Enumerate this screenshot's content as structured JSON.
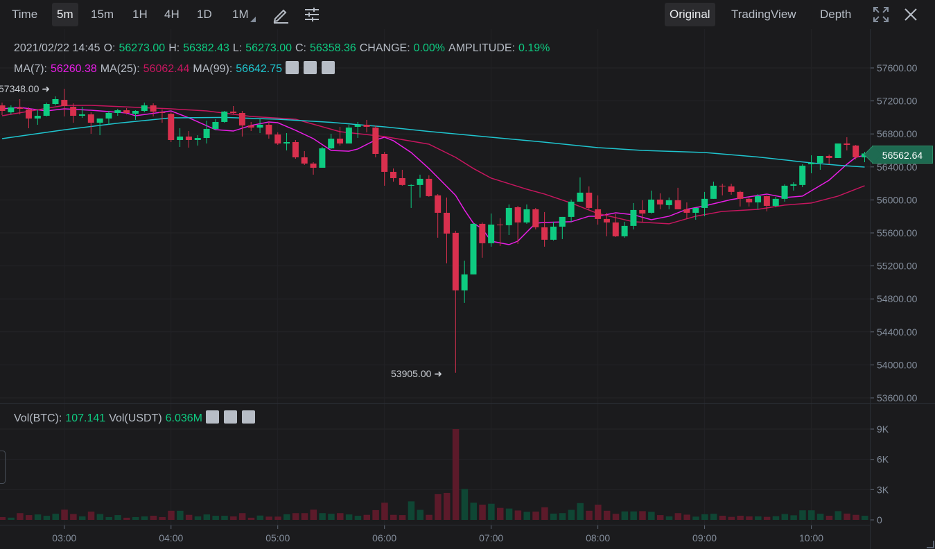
{
  "toolbar": {
    "intervals": [
      "Time",
      "5m",
      "15m",
      "1H",
      "4H",
      "1D",
      "1M"
    ],
    "active_interval": "5m",
    "views": [
      "Original",
      "TradingView",
      "Depth"
    ],
    "active_view": "Original",
    "icons": [
      "pencil-icon",
      "settings-sliders-icon",
      "fullscreen-icon",
      "close-icon"
    ]
  },
  "legend": {
    "datetime": "2021/02/22 14:45",
    "o_label": "O:",
    "o": "56273.00",
    "h_label": "H:",
    "h": "56382.43",
    "l_label": "L:",
    "l": "56273.00",
    "c_label": "C:",
    "c": "56358.36",
    "change_label": "CHANGE:",
    "change": "0.00%",
    "amp_label": "AMPLITUDE:",
    "amp": "0.19%",
    "ma7_label": "MA(7):",
    "ma7": "56260.38",
    "ma25_label": "MA(25):",
    "ma25": "56062.44",
    "ma99_label": "MA(99):",
    "ma99": "56642.75",
    "vol_btc_label": "Vol(BTC):",
    "vol_btc": "107.141",
    "vol_usdt_label": "Vol(USDT)",
    "vol_usdt": "6.036M"
  },
  "colors": {
    "up": "#0ecb81",
    "down": "#d9304e",
    "vol_up": "#0f4634",
    "vol_down": "#5c1a2a",
    "ma7": "#e81ee6",
    "ma25": "#c7165f",
    "ma99": "#1fc5cf"
  },
  "chart_data": {
    "type": "candlestick",
    "title": "",
    "start_time": "02:25",
    "interval_min": 5,
    "candle_fields": [
      "open",
      "high",
      "low",
      "close",
      "volume"
    ],
    "candles": [
      [
        57146,
        57180,
        57029,
        57079,
        280
      ],
      [
        57062,
        57146,
        57037,
        57121,
        220
      ],
      [
        57121,
        57222,
        57037,
        57104,
        670
      ],
      [
        57096,
        57121,
        56869,
        56987,
        475
      ],
      [
        56987,
        57096,
        56911,
        57020,
        540
      ],
      [
        57020,
        57180,
        57012,
        57163,
        410
      ],
      [
        57163,
        57255,
        57146,
        57222,
        605
      ],
      [
        57213,
        57348,
        57012,
        57138,
        1015
      ],
      [
        57129,
        57171,
        56936,
        57020,
        580
      ],
      [
        57020,
        57129,
        56995,
        57037,
        345
      ],
      [
        57037,
        57062,
        56802,
        56936,
        820
      ],
      [
        56936,
        56987,
        56785,
        56987,
        580
      ],
      [
        56987,
        57079,
        56911,
        57054,
        280
      ],
      [
        57054,
        57104,
        57020,
        57087,
        475
      ],
      [
        57087,
        57113,
        57037,
        57054,
        215
      ],
      [
        57045,
        57087,
        56970,
        57079,
        280
      ],
      [
        57079,
        57180,
        57062,
        57146,
        345
      ],
      [
        57146,
        57171,
        57012,
        57071,
        410
      ],
      [
        57062,
        57096,
        56936,
        57054,
        280
      ],
      [
        57045,
        57062,
        56701,
        56726,
        905
      ],
      [
        56726,
        56869,
        56642,
        56768,
        905
      ],
      [
        56768,
        56835,
        56634,
        56726,
        500
      ],
      [
        56726,
        56785,
        56659,
        56751,
        345
      ],
      [
        56751,
        56961,
        56684,
        56861,
        540
      ],
      [
        56861,
        56978,
        56844,
        56945,
        410
      ],
      [
        56945,
        57079,
        56936,
        57071,
        410
      ],
      [
        57071,
        57138,
        57037,
        57054,
        345
      ],
      [
        57054,
        57079,
        56768,
        56903,
        670
      ],
      [
        56903,
        56945,
        56835,
        56877,
        215
      ],
      [
        56877,
        56987,
        56810,
        56911,
        430
      ],
      [
        56911,
        56945,
        56743,
        56793,
        325
      ],
      [
        56793,
        56819,
        56667,
        56684,
        325
      ],
      [
        56684,
        56810,
        56600,
        56701,
        560
      ],
      [
        56701,
        56726,
        56499,
        56516,
        670
      ],
      [
        56516,
        56592,
        56424,
        56441,
        670
      ],
      [
        56441,
        56457,
        56306,
        56390,
        1015
      ],
      [
        56390,
        56642,
        56390,
        56625,
        670
      ],
      [
        56625,
        56802,
        56617,
        56743,
        605
      ],
      [
        56743,
        56886,
        56659,
        56684,
        670
      ],
      [
        56684,
        56911,
        56684,
        56877,
        540
      ],
      [
        56886,
        56945,
        56751,
        56911,
        410
      ],
      [
        56911,
        56970,
        56819,
        56886,
        500
      ],
      [
        56877,
        56903,
        56516,
        56558,
        970
      ],
      [
        56558,
        56583,
        56172,
        56340,
        1705
      ],
      [
        56340,
        56381,
        56222,
        56264,
        500
      ],
      [
        56264,
        56365,
        56172,
        56181,
        475
      ],
      [
        56172,
        56189,
        55903,
        56181,
        1835
      ],
      [
        56181,
        56306,
        56029,
        56256,
        995
      ],
      [
        56256,
        56298,
        56038,
        56046,
        500
      ],
      [
        56055,
        56071,
        55542,
        55844,
        2550
      ],
      [
        55844,
        56029,
        55231,
        55592,
        2680
      ],
      [
        55601,
        55626,
        53905,
        54903,
        9000
      ],
      [
        54903,
        55264,
        54752,
        55097,
        3065
      ],
      [
        55097,
        55718,
        55097,
        55710,
        1705
      ],
      [
        55710,
        55727,
        55299,
        55475,
        1510
      ],
      [
        55475,
        55835,
        55433,
        55701,
        1600
      ],
      [
        55701,
        55777,
        55441,
        55693,
        1190
      ],
      [
        55693,
        55945,
        55575,
        55903,
        1125
      ],
      [
        55911,
        55928,
        55466,
        55727,
        930
      ],
      [
        55727,
        55945,
        55710,
        55886,
        800
      ],
      [
        55886,
        55903,
        55643,
        55668,
        820
      ],
      [
        55668,
        55853,
        55433,
        55517,
        1250
      ],
      [
        55517,
        55735,
        55508,
        55676,
        625
      ],
      [
        55676,
        55794,
        55525,
        55794,
        670
      ],
      [
        55794,
        56004,
        55735,
        55979,
        995
      ],
      [
        55979,
        56273,
        55979,
        56088,
        1665
      ],
      [
        56088,
        56164,
        55886,
        55903,
        905
      ],
      [
        55886,
        56055,
        55701,
        55769,
        1510
      ],
      [
        55769,
        55844,
        55559,
        55727,
        905
      ],
      [
        55727,
        55827,
        55550,
        55559,
        605
      ],
      [
        55559,
        55735,
        55542,
        55685,
        840
      ],
      [
        55685,
        55962,
        55643,
        55878,
        840
      ],
      [
        55878,
        55996,
        55727,
        55835,
        865
      ],
      [
        55844,
        56113,
        55835,
        56004,
        800
      ],
      [
        56004,
        56080,
        55886,
        55945,
        475
      ],
      [
        55937,
        56029,
        55886,
        55996,
        345
      ],
      [
        55996,
        56147,
        55886,
        55886,
        670
      ],
      [
        55886,
        55970,
        55769,
        55844,
        520
      ],
      [
        55844,
        55903,
        55760,
        55903,
        325
      ],
      [
        55903,
        56097,
        55802,
        56013,
        560
      ],
      [
        56013,
        56222,
        56013,
        56172,
        605
      ],
      [
        56172,
        56197,
        56055,
        56164,
        410
      ],
      [
        56164,
        56197,
        56063,
        56097,
        300
      ],
      [
        56097,
        56113,
        55920,
        56013,
        410
      ],
      [
        56013,
        56029,
        55920,
        55970,
        345
      ],
      [
        55970,
        56071,
        55886,
        56046,
        345
      ],
      [
        56046,
        56055,
        55861,
        55928,
        300
      ],
      [
        55928,
        56038,
        55911,
        56013,
        365
      ],
      [
        56013,
        56189,
        55979,
        56172,
        580
      ],
      [
        56172,
        56214,
        56113,
        56189,
        455
      ],
      [
        56181,
        56432,
        56155,
        56415,
        950
      ],
      [
        56432,
        56541,
        56323,
        56449,
        950
      ],
      [
        56449,
        56533,
        56365,
        56533,
        605
      ],
      [
        56533,
        56550,
        56432,
        56508,
        410
      ],
      [
        56508,
        56684,
        56508,
        56684,
        865
      ],
      [
        56684,
        56760,
        56600,
        56667,
        625
      ],
      [
        56659,
        56667,
        56491,
        56516,
        500
      ],
      [
        56516,
        56583,
        56457,
        56562.64,
        410
      ]
    ],
    "ma_series": {
      "MA(7)": [
        [
          "02:25",
          57104
        ],
        [
          "02:35",
          57121
        ],
        [
          "02:50",
          57079
        ],
        [
          "03:00",
          57104
        ],
        [
          "03:15",
          57087
        ],
        [
          "03:35",
          57054
        ],
        [
          "03:40",
          57020
        ],
        [
          "04:00",
          57079
        ],
        [
          "04:10",
          56995
        ],
        [
          "04:25",
          56852
        ],
        [
          "04:35",
          56835
        ],
        [
          "04:45",
          56903
        ],
        [
          "04:55",
          56945
        ],
        [
          "05:00",
          56936
        ],
        [
          "05:10",
          56844
        ],
        [
          "05:20",
          56743
        ],
        [
          "05:30",
          56600
        ],
        [
          "05:40",
          56591
        ],
        [
          "05:45",
          56617
        ],
        [
          "05:55",
          56726
        ],
        [
          "06:00",
          56760
        ],
        [
          "06:05",
          56718
        ],
        [
          "06:15",
          56575
        ],
        [
          "06:25",
          56381
        ],
        [
          "06:40",
          56055
        ],
        [
          "06:45",
          55878
        ],
        [
          "06:50",
          55718
        ],
        [
          "06:55",
          55651
        ],
        [
          "07:00",
          55500
        ],
        [
          "07:10",
          55458
        ],
        [
          "07:15",
          55500
        ],
        [
          "07:25",
          55718
        ],
        [
          "07:30",
          55727
        ],
        [
          "07:45",
          55735
        ],
        [
          "07:55",
          55802
        ],
        [
          "08:00",
          55802
        ],
        [
          "08:10",
          55844
        ],
        [
          "08:20",
          55820
        ],
        [
          "08:30",
          55760
        ],
        [
          "08:40",
          55802
        ],
        [
          "08:50",
          55886
        ],
        [
          "09:00",
          55928
        ],
        [
          "09:15",
          56004
        ],
        [
          "09:35",
          56071
        ],
        [
          "09:45",
          56029
        ],
        [
          "09:55",
          56046
        ],
        [
          "10:10",
          56239
        ],
        [
          "10:20",
          56432
        ],
        [
          "10:25",
          56516
        ],
        [
          "10:30",
          56541
        ]
      ],
      "MA(25)": [
        [
          "02:25",
          57020
        ],
        [
          "03:00",
          57146
        ],
        [
          "03:15",
          57146
        ],
        [
          "04:00",
          57104
        ],
        [
          "04:20",
          57079
        ],
        [
          "04:45",
          57012
        ],
        [
          "05:10",
          56978
        ],
        [
          "05:35",
          56827
        ],
        [
          "06:00",
          56768
        ],
        [
          "06:25",
          56676
        ],
        [
          "06:40",
          56516
        ],
        [
          "06:50",
          56381
        ],
        [
          "07:00",
          56264
        ],
        [
          "07:20",
          56130
        ],
        [
          "07:30",
          56071
        ],
        [
          "07:45",
          55962
        ],
        [
          "08:00",
          55835
        ],
        [
          "08:20",
          55735
        ],
        [
          "08:40",
          55710
        ],
        [
          "08:55",
          55802
        ],
        [
          "09:10",
          55861
        ],
        [
          "09:30",
          55886
        ],
        [
          "09:45",
          55937
        ],
        [
          "10:00",
          55962
        ],
        [
          "10:15",
          56046
        ],
        [
          "10:25",
          56130
        ],
        [
          "10:30",
          56172
        ]
      ],
      "MA(99)": [
        [
          "02:25",
          56743
        ],
        [
          "03:00",
          56850
        ],
        [
          "03:30",
          56930
        ],
        [
          "04:00",
          56995
        ],
        [
          "04:30",
          57000
        ],
        [
          "05:00",
          56978
        ],
        [
          "05:30",
          56940
        ],
        [
          "06:00",
          56886
        ],
        [
          "06:25",
          56830
        ],
        [
          "07:00",
          56760
        ],
        [
          "07:30",
          56700
        ],
        [
          "08:00",
          56634
        ],
        [
          "08:25",
          56600
        ],
        [
          "09:00",
          56575
        ],
        [
          "09:30",
          56520
        ],
        [
          "10:00",
          56449
        ],
        [
          "10:15",
          56420
        ],
        [
          "10:30",
          56398
        ]
      ]
    },
    "price_ticks": [
      "57600.00",
      "57200.00",
      "56800.00",
      "56400.00",
      "56000.00",
      "55600.00",
      "55200.00",
      "54800.00",
      "54400.00",
      "54000.00",
      "53600.00"
    ],
    "ylim": [
      53600,
      57600
    ],
    "volume_ticks": [
      "9K",
      "6K",
      "3K",
      "0"
    ],
    "volume_ylim": [
      0,
      9000
    ],
    "time_ticks": [
      "03:00",
      "04:00",
      "05:00",
      "06:00",
      "07:00",
      "08:00",
      "09:00",
      "10:00"
    ],
    "high_marker": "57348.00",
    "low_marker": "53905.00",
    "last_price": "56562.64",
    "grid": true
  }
}
